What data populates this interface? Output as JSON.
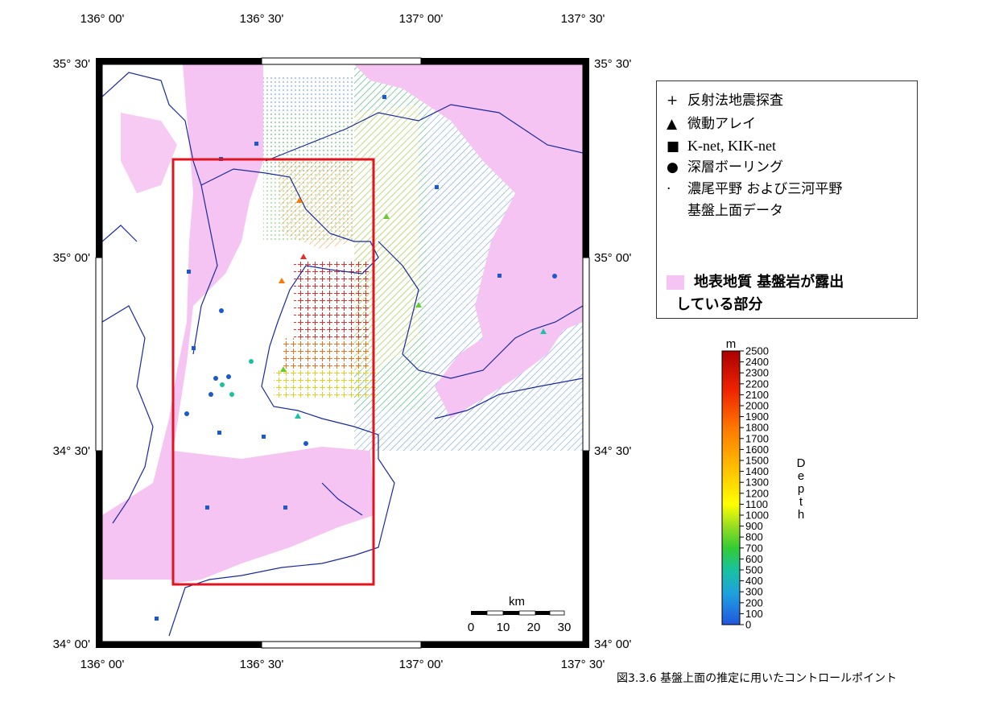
{
  "map": {
    "top_labels": [
      "136° 00'",
      "136° 30'",
      "137° 00'",
      "137° 30'"
    ],
    "bottom_labels": [
      "136° 00'",
      "136° 30'",
      "137° 00'",
      "137° 30'"
    ],
    "left_labels": [
      "35° 30'",
      "35° 00'",
      "34° 30'",
      "34° 00'"
    ],
    "right_labels": [
      "35° 30'",
      "35° 00'",
      "34° 30'",
      "34° 00'"
    ],
    "scale_bar": {
      "unit": "km",
      "ticks": [
        "0",
        "10",
        "20",
        "30"
      ]
    }
  },
  "legend": {
    "items": [
      {
        "symbol": "+",
        "label": "反射法地震探査"
      },
      {
        "symbol": "▲",
        "label": "微動アレイ"
      },
      {
        "symbol": "■",
        "label": "K-net, KIK-net"
      },
      {
        "symbol": "●",
        "label": "深層ボーリング"
      },
      {
        "symbol": "·",
        "label": "濃尾平野 および三河平野"
      }
    ],
    "item5_line2": "基盤上面データ",
    "geology_label_1": "地表地質 基盤岩が露出",
    "geology_label_2": "している部分",
    "geology_color": "#f6c4f2"
  },
  "colorbar": {
    "unit": "m",
    "title": "Depth",
    "tick_labels": [
      "2500",
      "2400",
      "2300",
      "2200",
      "2100",
      "2000",
      "1900",
      "1800",
      "1700",
      "1600",
      "1500",
      "1400",
      "1300",
      "1200",
      "1100",
      "1000",
      "900",
      "800",
      "700",
      "600",
      "500",
      "400",
      "300",
      "200",
      "100",
      "0"
    ],
    "colors": [
      "#2255dd",
      "#1e9fe0",
      "#19c2a0",
      "#33cc33",
      "#99dd22",
      "#ffff00",
      "#ffbb00",
      "#ff7700",
      "#ee2200",
      "#aa0000"
    ]
  },
  "caption": "図3.3.6 基盤上面の推定に用いたコントロールポイント"
}
